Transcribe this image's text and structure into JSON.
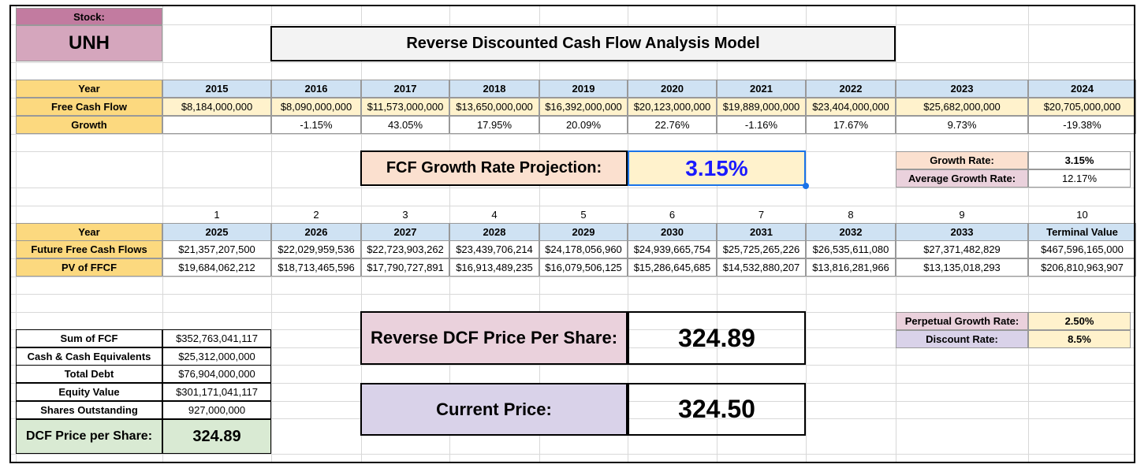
{
  "stock": {
    "label": "Stock:",
    "ticker": "UNH"
  },
  "title": "Reverse Discounted Cash Flow Analysis Model",
  "history": {
    "row_labels": [
      "Year",
      "Free Cash Flow",
      "Growth"
    ],
    "years": [
      "2015",
      "2016",
      "2017",
      "2018",
      "2019",
      "2020",
      "2021",
      "2022",
      "2023",
      "2024"
    ],
    "fcf": [
      "$8,184,000,000",
      "$8,090,000,000",
      "$11,573,000,000",
      "$13,650,000,000",
      "$16,392,000,000",
      "$20,123,000,000",
      "$19,889,000,000",
      "$23,404,000,000",
      "$25,682,000,000",
      "$20,705,000,000"
    ],
    "growth": [
      "",
      "-1.15%",
      "43.05%",
      "17.95%",
      "20.09%",
      "22.76%",
      "-1.16%",
      "17.67%",
      "9.73%",
      "-19.38%"
    ]
  },
  "projection": {
    "label": "FCF Growth Rate Projection:",
    "value": "3.15%"
  },
  "rates": {
    "growth_label": "Growth Rate:",
    "growth_value": "3.15%",
    "avg_label": "Average Growth Rate:",
    "avg_value": "12.17%"
  },
  "future": {
    "periods": [
      "1",
      "2",
      "3",
      "4",
      "5",
      "6",
      "7",
      "8",
      "9",
      "10"
    ],
    "row_labels": [
      "Year",
      "Future Free Cash Flows",
      "PV of FFCF"
    ],
    "years": [
      "2025",
      "2026",
      "2027",
      "2028",
      "2029",
      "2030",
      "2031",
      "2032",
      "2033",
      "Terminal Value"
    ],
    "ffcf": [
      "$21,357,207,500",
      "$22,029,959,536",
      "$22,723,903,262",
      "$23,439,706,214",
      "$24,178,056,960",
      "$24,939,665,754",
      "$25,725,265,226",
      "$26,535,611,080",
      "$27,371,482,829",
      "$467,596,165,000"
    ],
    "pv": [
      "$19,684,062,212",
      "$18,713,465,596",
      "$17,790,727,891",
      "$16,913,489,235",
      "$16,079,506,125",
      "$15,286,645,685",
      "$14,532,880,207",
      "$13,816,281,966",
      "$13,135,018,293",
      "$206,810,963,907"
    ]
  },
  "summary": {
    "rows": [
      {
        "label": "Sum of FCF",
        "value": "$352,763,041,117"
      },
      {
        "label": "Cash & Cash Equivalents",
        "value": "$25,312,000,000"
      },
      {
        "label": "Total Debt",
        "value": "$76,904,000,000"
      },
      {
        "label": "Equity Value",
        "value": "$301,171,041,117"
      },
      {
        "label": "Shares Outstanding",
        "value": "927,000,000"
      }
    ],
    "dcf_label": "DCF Price per Share:",
    "dcf_value": "324.89"
  },
  "reverse_dcf": {
    "label": "Reverse DCF Price Per Share:",
    "value": "324.89"
  },
  "current": {
    "label": "Current Price:",
    "value": "324.50"
  },
  "assumptions": {
    "perpetual_label": "Perpetual Growth Rate:",
    "perpetual_value": "2.50%",
    "discount_label": "Discount Rate:",
    "discount_value": "8.5%"
  },
  "colors": {
    "header_yellow": "#fcd97f",
    "header_blue": "#cfe2f3",
    "value_cream": "#fff2cc",
    "stock_pink": "#d5a6bd",
    "stock_pink_dark": "#c27ba0",
    "peach": "#fbe0cf",
    "rose": "#ead1dc",
    "lavender": "#d9d2e9",
    "green": "#d9ead3",
    "link_blue": "#1a1aff"
  }
}
